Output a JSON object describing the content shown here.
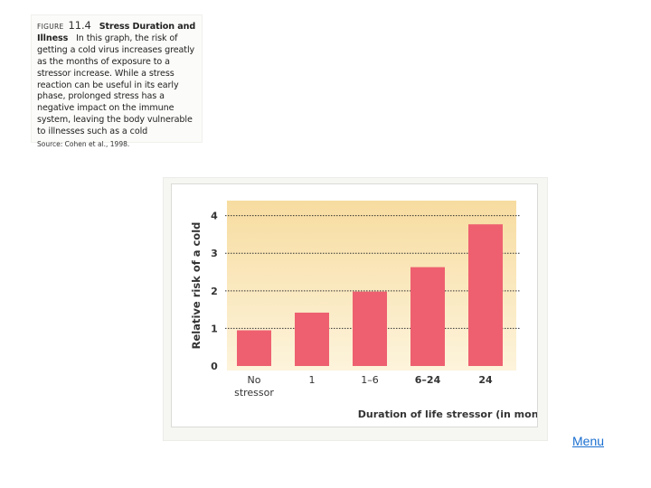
{
  "caption": {
    "figure_label": "FIGURE",
    "figure_number": "11.4",
    "bold_title_part1": "Stress Duration and",
    "bold_title_part2": "Illness",
    "body": "In this graph, the risk of getting a cold virus increases greatly as the months of exposure to a stressor increase. While a stress reaction can be useful in its early phase, prolonged stress has a negative impact on the immune system, leaving the body vulnerable to illnesses such as a cold",
    "source": "Source: Cohen et al., 1998."
  },
  "chart_data": {
    "type": "bar",
    "categories": [
      "No stressor",
      "1",
      "1–6",
      "6–24",
      "24"
    ],
    "category_lines": [
      [
        "No",
        "stressor"
      ],
      [
        "1"
      ],
      [
        "1–6"
      ],
      [
        "6–24"
      ],
      [
        "24"
      ]
    ],
    "values": [
      0.95,
      1.42,
      1.98,
      2.63,
      3.77
    ],
    "xlabel": "Duration of life stressor (in months)",
    "ylabel": "Relative risk of a cold",
    "ylim": [
      0,
      4.4
    ],
    "yticks": [
      0,
      1,
      2,
      3,
      4
    ],
    "grid": "dotted horizontal lines at each tick",
    "colors": {
      "bar": "#ee6070",
      "background_top": "#f7dca0",
      "background_bottom": "#fdf4dc",
      "text": "#333333"
    }
  },
  "nav": {
    "menu_label": "Menu"
  }
}
